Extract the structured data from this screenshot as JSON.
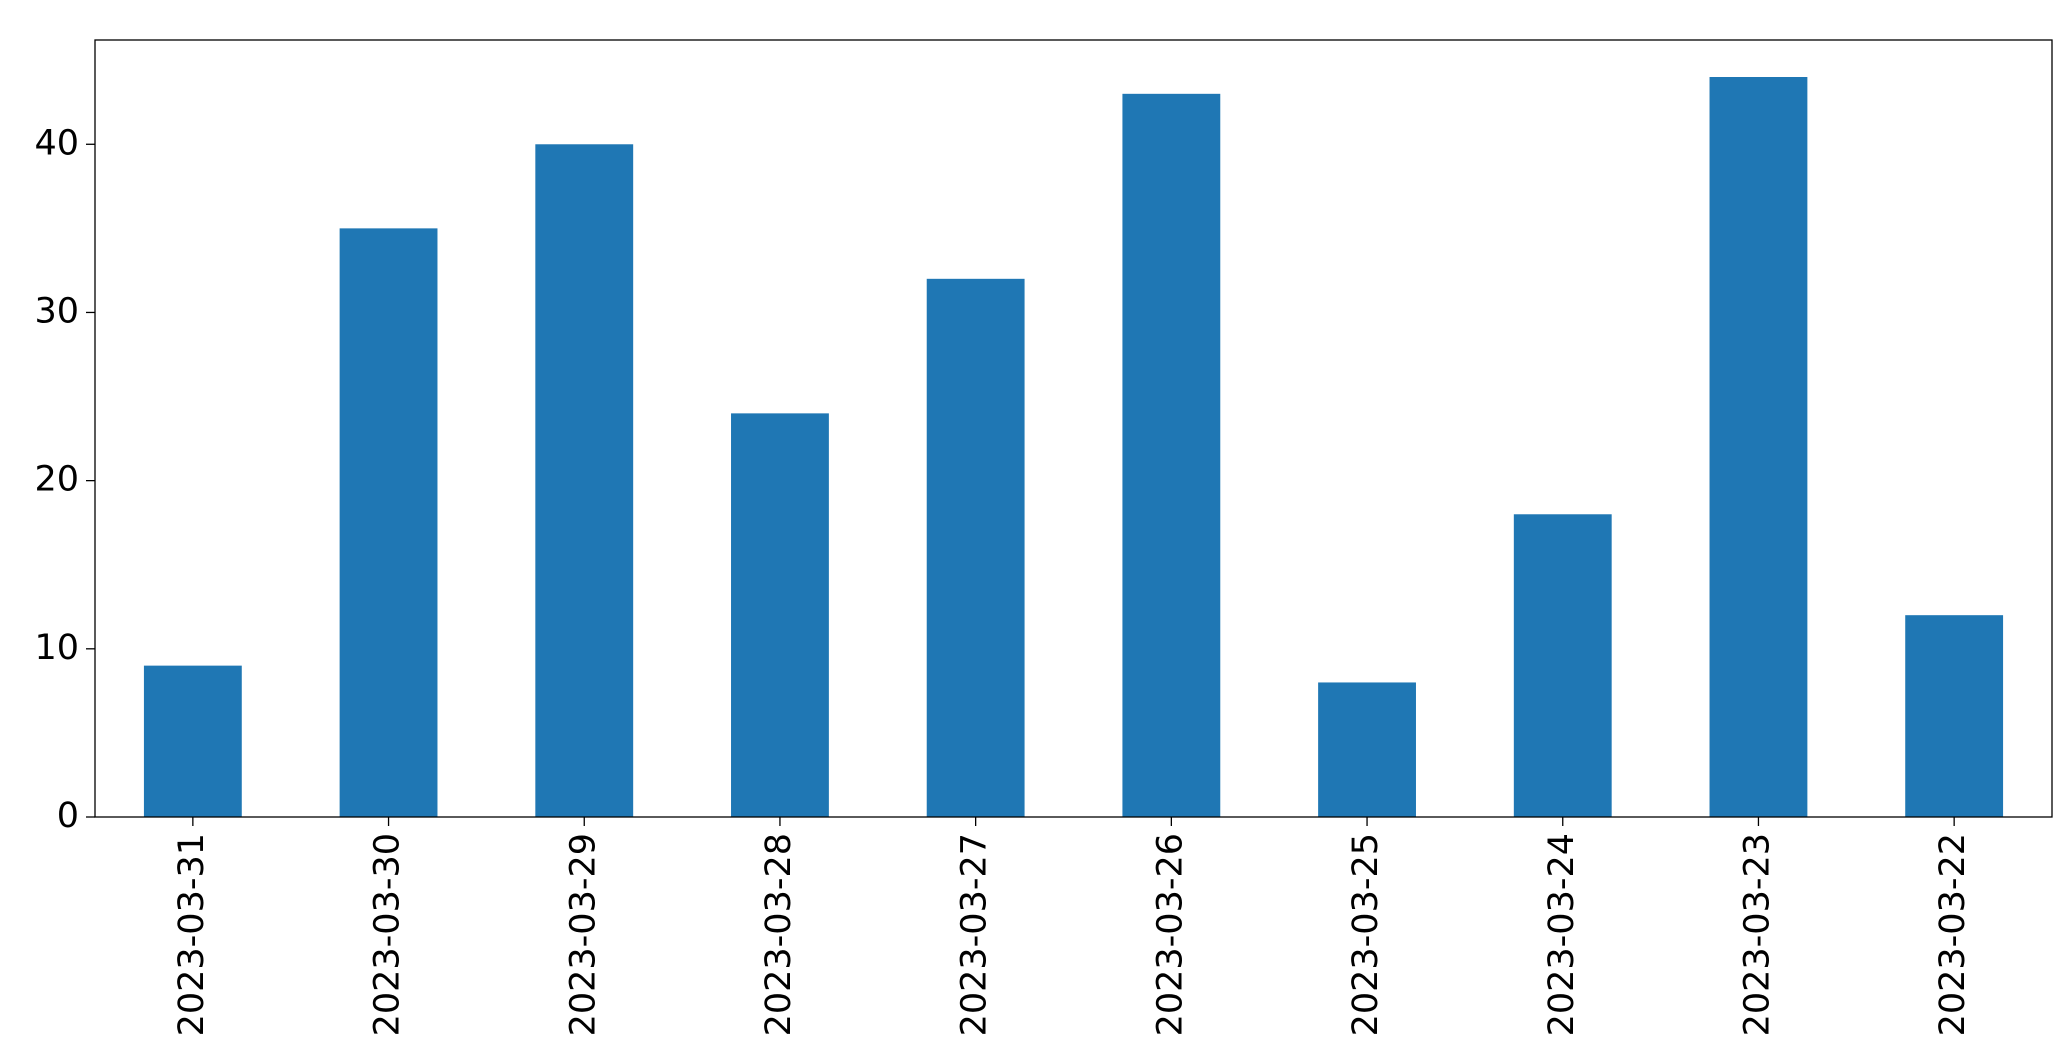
{
  "chart_data": {
    "type": "bar",
    "categories": [
      "2023-03-31",
      "2023-03-30",
      "2023-03-29",
      "2023-03-28",
      "2023-03-27",
      "2023-03-26",
      "2023-03-25",
      "2023-03-24",
      "2023-03-23",
      "2023-03-22"
    ],
    "values": [
      9,
      35,
      40,
      24,
      32,
      43,
      8,
      18,
      44,
      12
    ],
    "color": "#1f77b4",
    "ylim": [
      0,
      46.2
    ],
    "yticks": [
      0,
      10,
      20,
      30,
      40
    ],
    "grid": false
  }
}
